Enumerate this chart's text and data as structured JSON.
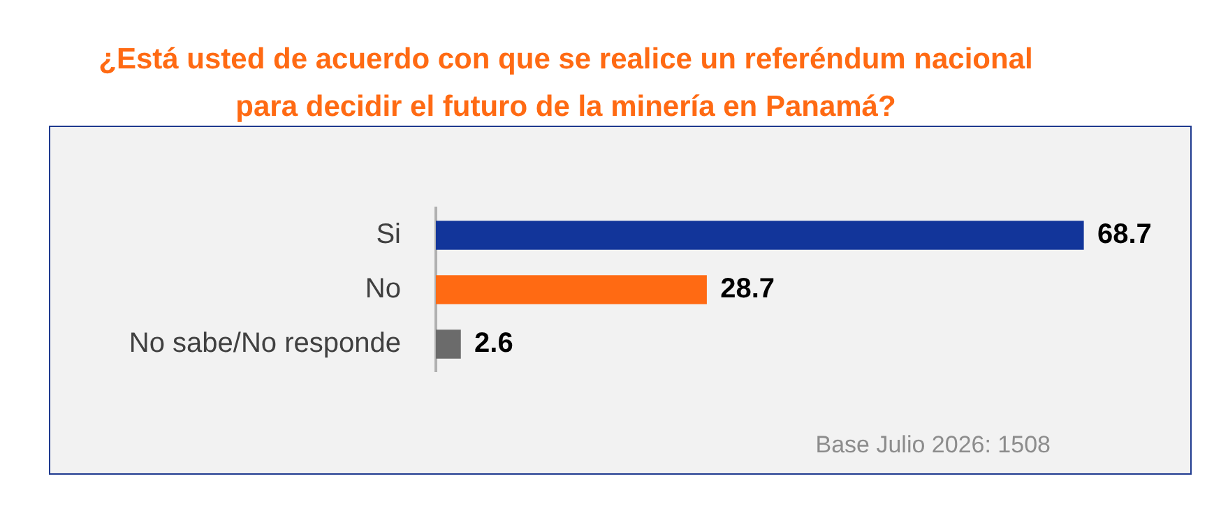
{
  "chart_data": {
    "type": "bar",
    "orientation": "horizontal",
    "title": "¿Está usted de acuerdo con que se realice un referéndum nacional para decidir el futuro de la minería en Panamá?",
    "categories": [
      "Si",
      "No",
      "No sabe/No responde"
    ],
    "values": [
      68.7,
      28.7,
      2.6
    ],
    "colors": [
      "#12359a",
      "#ff6a13",
      "#6b6b6b"
    ],
    "data_labels": true,
    "annotations": [
      "Base Julio 2026: 1508"
    ]
  }
}
